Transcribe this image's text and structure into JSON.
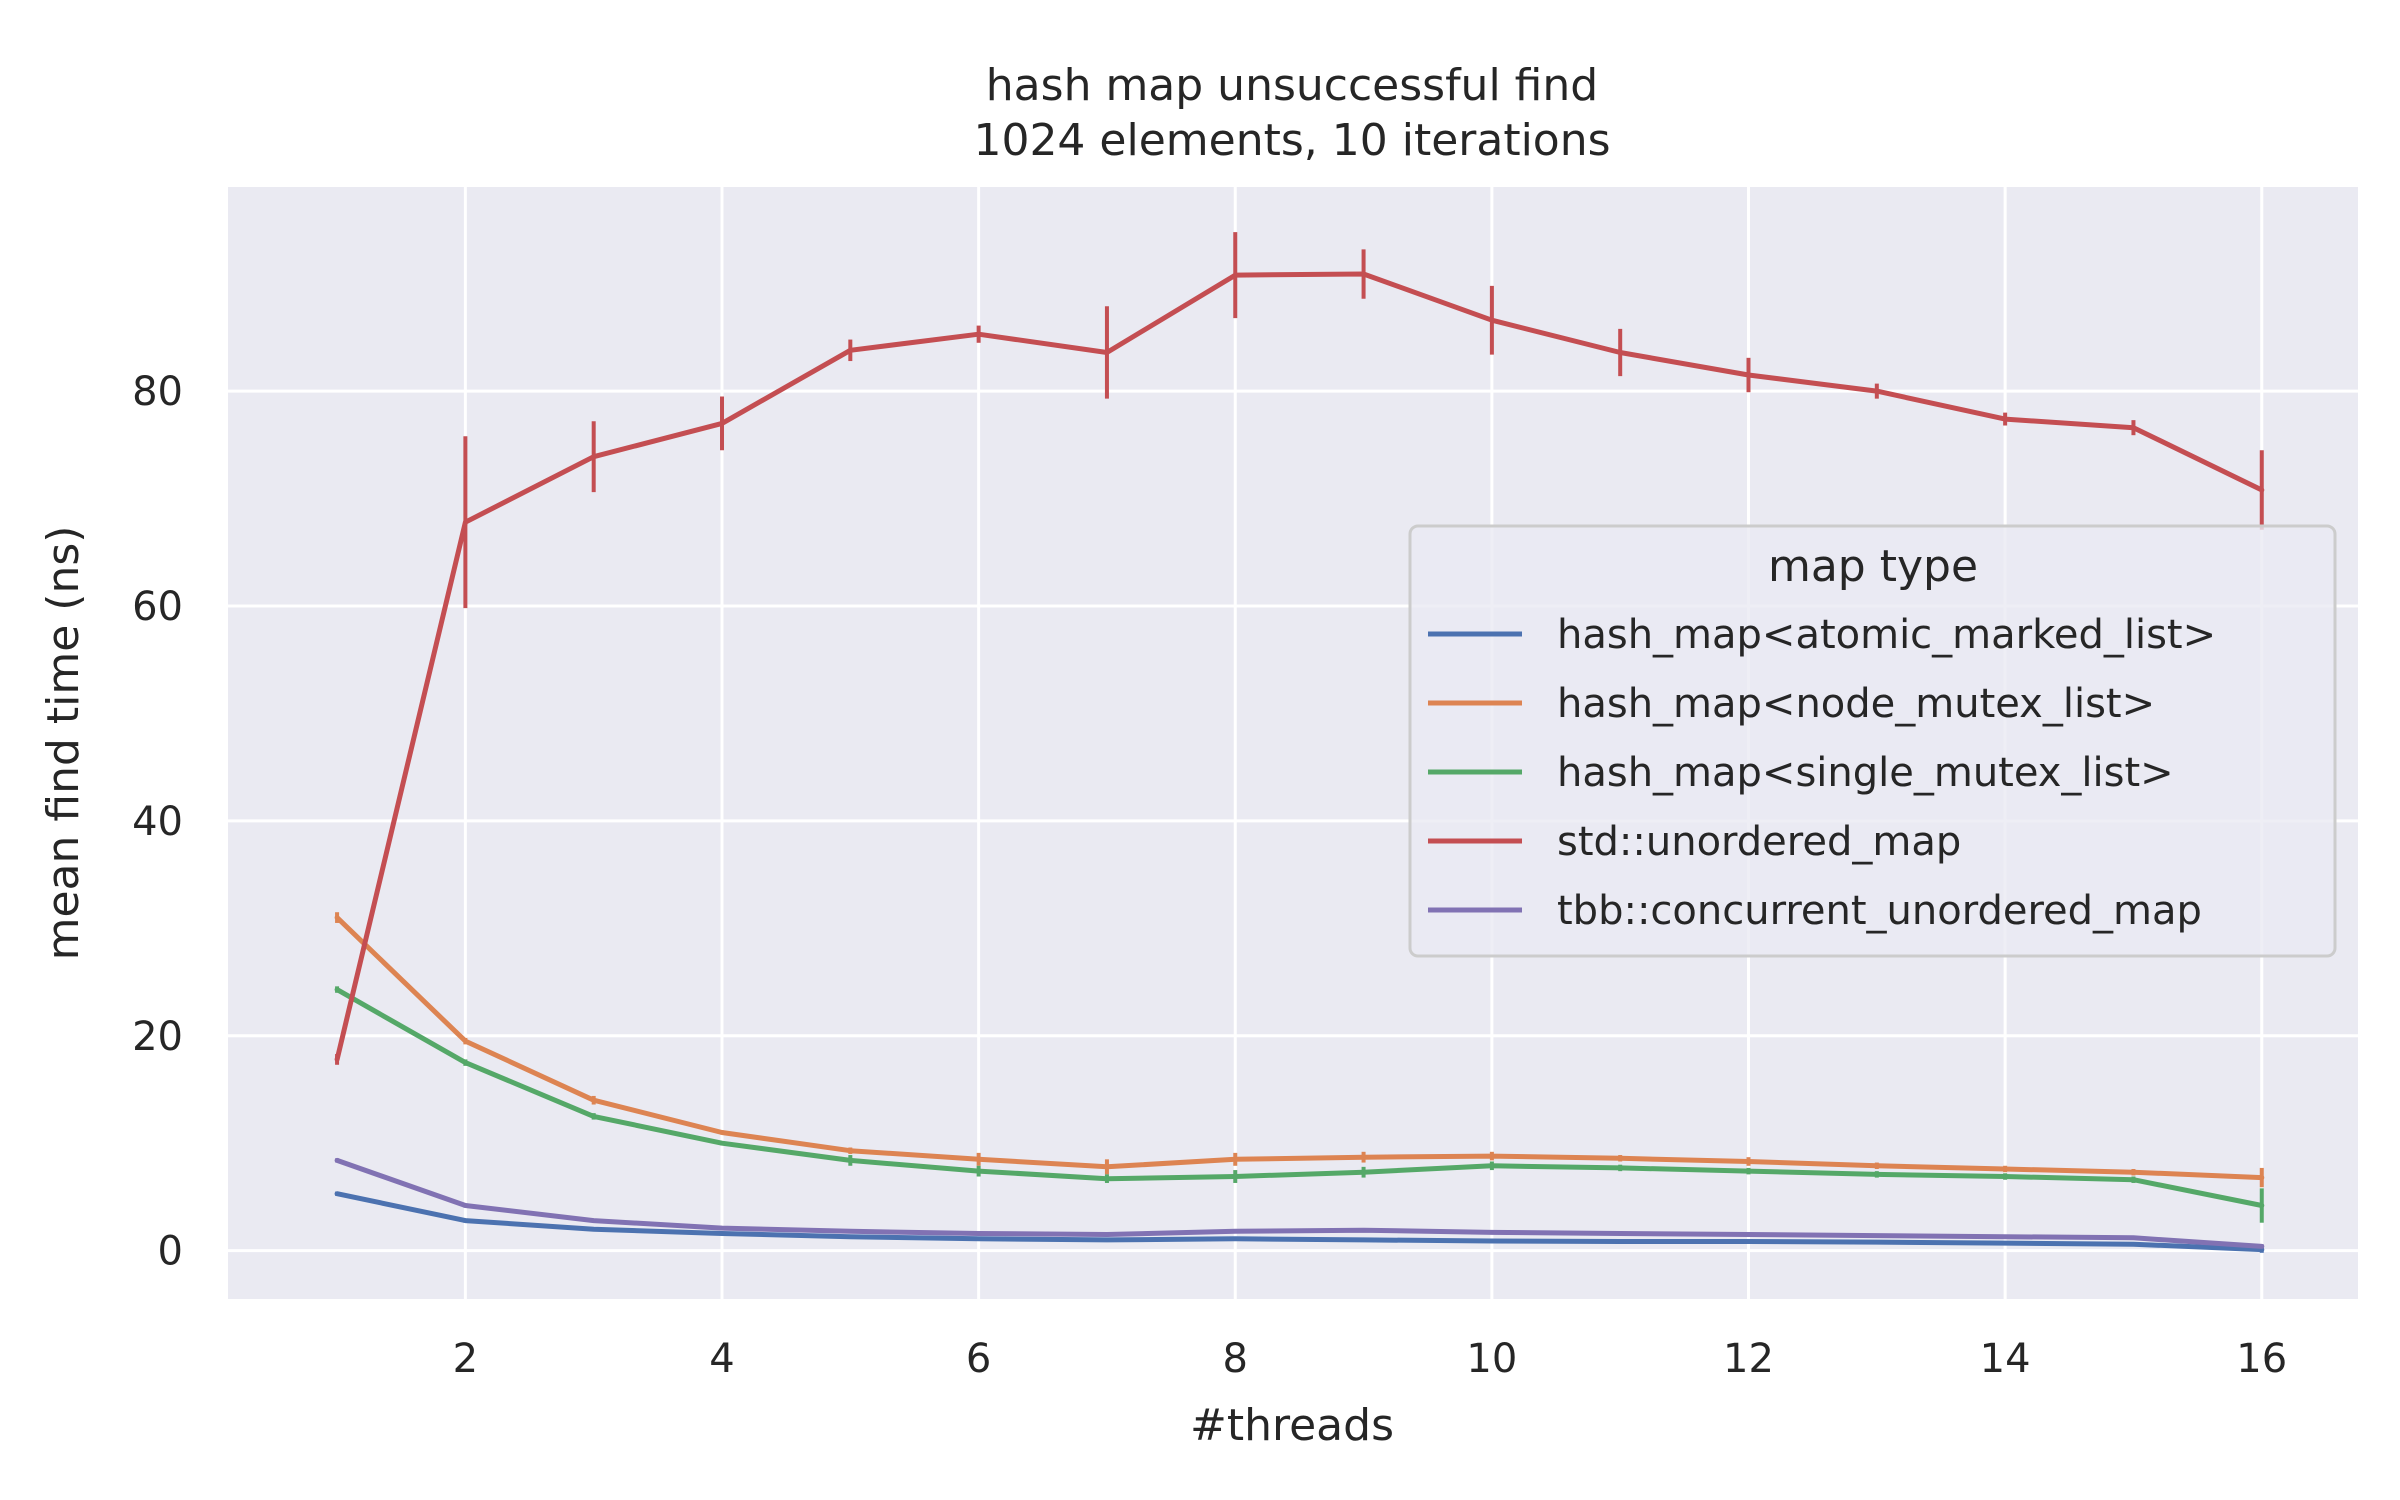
{
  "chart_data": {
    "type": "line",
    "title": "hash map unsuccessful find",
    "subtitle": "1024 elements, 10 iterations",
    "xlabel": "#threads",
    "ylabel": "mean find time (ns)",
    "xlim": [
      0.15,
      16.75
    ],
    "ylim": [
      -4.5,
      99
    ],
    "x_ticks": [
      2,
      4,
      6,
      8,
      10,
      12,
      14,
      16
    ],
    "y_ticks": [
      0,
      20,
      40,
      60,
      80
    ],
    "grid": true,
    "background": "#eaeaf2",
    "grid_color": "#ffffff",
    "legend_title": "map type",
    "legend_position": "center-right",
    "x": [
      1,
      2,
      3,
      4,
      5,
      6,
      7,
      8,
      9,
      10,
      11,
      12,
      13,
      14,
      15,
      16
    ],
    "series": [
      {
        "name": "hash_map<atomic_marked_list>",
        "color": "#4c72b0",
        "values": [
          5.3,
          2.8,
          2.0,
          1.6,
          1.3,
          1.1,
          1.0,
          1.1,
          1.0,
          0.9,
          0.85,
          0.85,
          0.8,
          0.7,
          0.6,
          0.1
        ],
        "errors": [
          0.2,
          0.2,
          0.1,
          0.1,
          0.1,
          0.1,
          0.1,
          0.1,
          0.1,
          0.1,
          0.1,
          0.1,
          0.1,
          0.1,
          0.1,
          0.3
        ]
      },
      {
        "name": "hash_map<node_mutex_list>",
        "color": "#dd8452",
        "values": [
          31.0,
          19.5,
          14.0,
          11.0,
          9.3,
          8.5,
          7.8,
          8.5,
          8.7,
          8.8,
          8.6,
          8.3,
          7.9,
          7.6,
          7.3,
          6.8
        ],
        "errors": [
          0.5,
          0.3,
          0.4,
          0.2,
          0.3,
          0.6,
          0.7,
          0.6,
          0.5,
          0.4,
          0.3,
          0.4,
          0.3,
          0.3,
          0.3,
          0.9
        ]
      },
      {
        "name": "hash_map<single_mutex_list>",
        "color": "#55a868",
        "values": [
          24.3,
          17.5,
          12.5,
          10.0,
          8.4,
          7.4,
          6.7,
          6.9,
          7.3,
          7.9,
          7.7,
          7.4,
          7.1,
          6.9,
          6.6,
          4.2
        ],
        "errors": [
          0.3,
          0.3,
          0.3,
          0.2,
          0.5,
          0.5,
          0.4,
          0.6,
          0.5,
          0.4,
          0.3,
          0.3,
          0.3,
          0.3,
          0.3,
          1.6
        ]
      },
      {
        "name": "std::unordered_map",
        "color": "#c44e52",
        "values": [
          17.8,
          67.8,
          73.9,
          77.0,
          83.8,
          85.3,
          83.6,
          90.8,
          90.9,
          86.6,
          83.6,
          81.5,
          80.0,
          77.4,
          76.6,
          70.8
        ],
        "errors": [
          0.5,
          8.0,
          3.3,
          2.5,
          1.0,
          0.8,
          4.3,
          4.0,
          2.3,
          3.2,
          2.2,
          1.6,
          0.7,
          0.6,
          0.7,
          3.7
        ]
      },
      {
        "name": "tbb::concurrent_unordered_map",
        "color": "#8172b3",
        "values": [
          8.4,
          4.2,
          2.8,
          2.1,
          1.8,
          1.6,
          1.5,
          1.8,
          1.9,
          1.7,
          1.6,
          1.5,
          1.4,
          1.3,
          1.2,
          0.4
        ],
        "errors": [
          0.2,
          0.2,
          0.1,
          0.1,
          0.1,
          0.1,
          0.2,
          0.2,
          0.1,
          0.1,
          0.1,
          0.1,
          0.1,
          0.1,
          0.1,
          0.2
        ]
      }
    ]
  }
}
